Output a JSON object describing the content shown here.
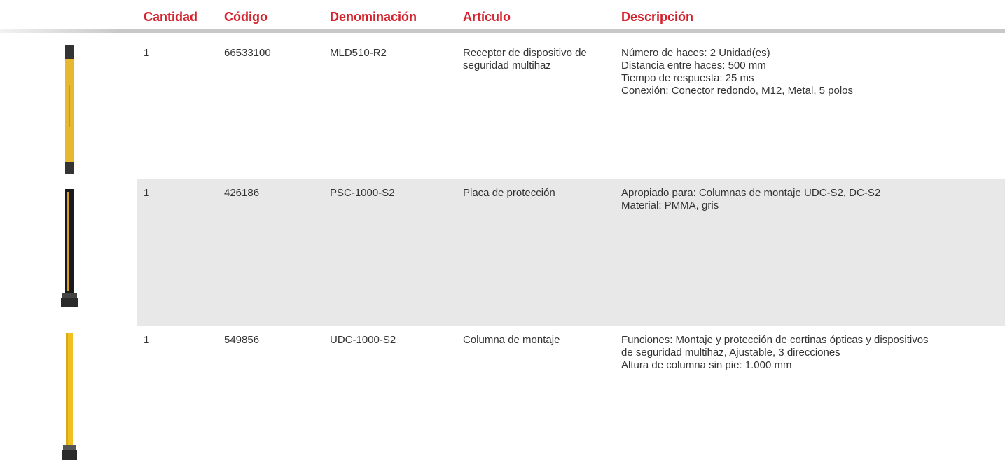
{
  "table": {
    "headers": [
      "Cantidad",
      "Código",
      "Denominación",
      "Artículo",
      "Descripción"
    ],
    "rows": [
      [
        "1",
        "66533100",
        "MLD510-R2",
        "Receptor de dispositivo de seguridad multihaz",
        [
          "Número de haces: 2 Unidad(es)",
          "Distancia entre haces: 500 mm",
          "Tiempo de respuesta: 25 ms",
          "Conexión: Conector redondo, M12, Metal, 5 polos"
        ]
      ],
      [
        "1",
        "426186",
        "PSC-1000-S2",
        "Placa de protección",
        [
          "Apropiado para: Columnas de montaje UDC-S2, DC-S2",
          "Material: PMMA, gris"
        ]
      ],
      [
        "1",
        "549856",
        "UDC-1000-S2",
        "Columna de montaje",
        [
          "Funciones: Montaje y protección de cortinas ópticas y dispositivos",
          "de seguridad multihaz, Ajustable, 3 direcciones",
          "Altura de columna sin pie: 1.000 mm"
        ]
      ]
    ]
  }
}
